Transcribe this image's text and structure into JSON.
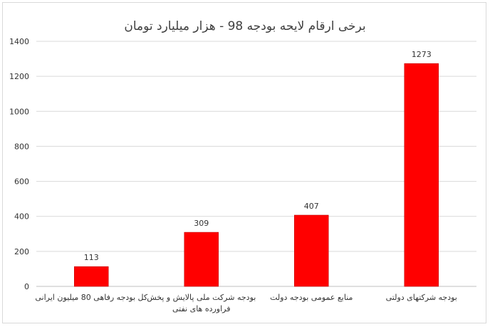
{
  "chart_data": {
    "type": "bar",
    "title": "برخی ارقام لایحه بودجه 98 - هزار میلیارد تومان",
    "categories": [
      [
        "کل بودجه رفاهی 80 میلیون ایرانی"
      ],
      [
        "بودجه شرکت ملی پالایش و پخش",
        "فراورده های نفتی"
      ],
      [
        "منابع عمومی بودجه دولت"
      ],
      [
        "بودجه شرکتهای دولتی"
      ]
    ],
    "values": [
      113,
      309,
      407,
      1273
    ],
    "ylim": [
      0,
      1400
    ],
    "yticks": [
      0,
      200,
      400,
      600,
      800,
      1000,
      1200,
      1400
    ],
    "grid": true,
    "legend": "none",
    "bar_color": "#ff0000",
    "bar_edge_color": "#c00000",
    "grid_color": "#d9d9d9"
  }
}
